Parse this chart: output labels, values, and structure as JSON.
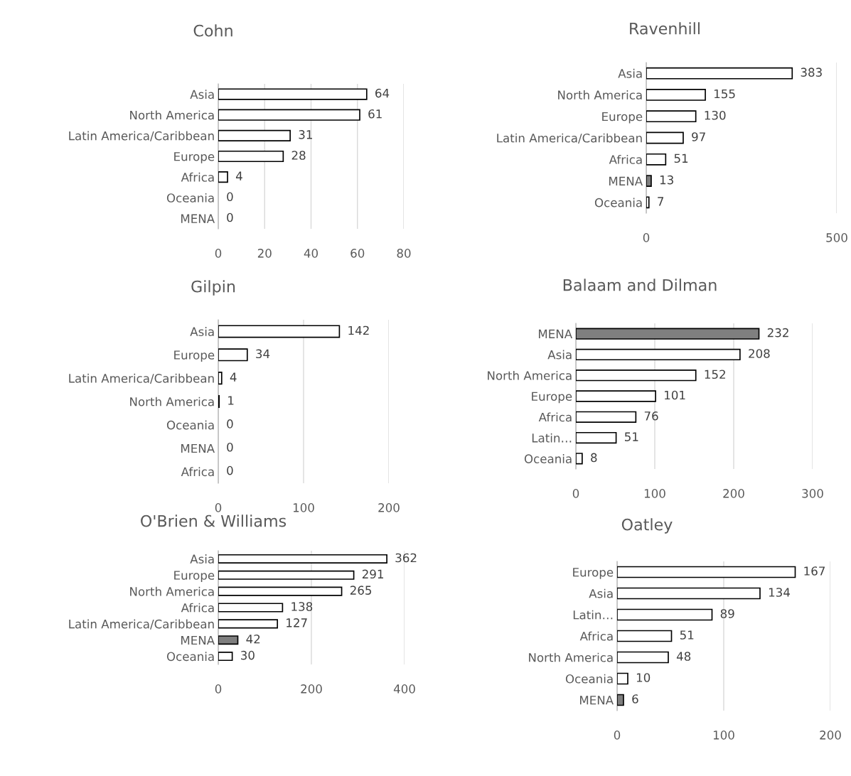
{
  "chart_data": [
    {
      "type": "bar",
      "orientation": "horizontal",
      "title": "Cohn",
      "categories": [
        "Asia",
        "North America",
        "Latin America/Caribbean",
        "Europe",
        "Africa",
        "Oceania",
        "MENA"
      ],
      "values": [
        64,
        61,
        31,
        28,
        4,
        0,
        0
      ],
      "colors": [
        "#ffffff",
        "#ffffff",
        "#ffffff",
        "#ffffff",
        "#ffffff",
        "#ffffff",
        "#7f7f7f"
      ],
      "xlim": [
        0,
        80
      ],
      "xticks": [
        0,
        20,
        40,
        60,
        80
      ],
      "grid": "x",
      "data_labels": true
    },
    {
      "type": "bar",
      "orientation": "horizontal",
      "title": "Ravenhill",
      "categories": [
        "Asia",
        "North America",
        "Europe",
        "Latin America/Caribbean",
        "Africa",
        "MENA",
        "Oceania"
      ],
      "values": [
        383,
        155,
        130,
        97,
        51,
        13,
        7
      ],
      "colors": [
        "#ffffff",
        "#ffffff",
        "#ffffff",
        "#ffffff",
        "#ffffff",
        "#7f7f7f",
        "#ffffff"
      ],
      "xlim": [
        0,
        500
      ],
      "xticks": [
        0,
        500
      ],
      "grid": "x",
      "data_labels": true
    },
    {
      "type": "bar",
      "orientation": "horizontal",
      "title": "Gilpin",
      "categories": [
        "Asia",
        "Europe",
        "Latin America/Caribbean",
        "North America",
        "Oceania",
        "MENA",
        "Africa"
      ],
      "values": [
        142,
        34,
        4,
        1,
        0,
        0,
        0
      ],
      "colors": [
        "#ffffff",
        "#ffffff",
        "#ffffff",
        "#ffffff",
        "#ffffff",
        "#7f7f7f",
        "#ffffff"
      ],
      "xlim": [
        0,
        200
      ],
      "xticks": [
        0,
        100,
        200
      ],
      "grid": "x",
      "data_labels": true
    },
    {
      "type": "bar",
      "orientation": "horizontal",
      "title": "Balaam and Dilman",
      "categories": [
        "MENA",
        "Asia",
        "North America",
        "Europe",
        "Africa",
        "Latin…",
        "Oceania"
      ],
      "values": [
        232,
        208,
        152,
        101,
        76,
        51,
        8
      ],
      "colors": [
        "#7f7f7f",
        "#ffffff",
        "#ffffff",
        "#ffffff",
        "#ffffff",
        "#ffffff",
        "#ffffff"
      ],
      "xlim": [
        0,
        300
      ],
      "xticks": [
        0,
        100,
        200,
        300
      ],
      "grid": "x",
      "data_labels": true
    },
    {
      "type": "bar",
      "orientation": "horizontal",
      "title": "O'Brien & Williams",
      "categories": [
        "Asia",
        "Europe",
        "North America",
        "Africa",
        "Latin America/Caribbean",
        "MENA",
        "Oceania"
      ],
      "values": [
        362,
        291,
        265,
        138,
        127,
        42,
        30
      ],
      "colors": [
        "#ffffff",
        "#ffffff",
        "#ffffff",
        "#ffffff",
        "#ffffff",
        "#7f7f7f",
        "#ffffff"
      ],
      "xlim": [
        0,
        400
      ],
      "xticks": [
        0,
        200,
        400
      ],
      "grid": "x",
      "data_labels": true
    },
    {
      "type": "bar",
      "orientation": "horizontal",
      "title": "Oatley",
      "categories": [
        "Europe",
        "Asia",
        "Latin…",
        "Africa",
        "North America",
        "Oceania",
        "MENA"
      ],
      "values": [
        167,
        134,
        89,
        51,
        48,
        10,
        6
      ],
      "colors": [
        "#ffffff",
        "#ffffff",
        "#ffffff",
        "#ffffff",
        "#ffffff",
        "#ffffff",
        "#7f7f7f"
      ],
      "xlim": [
        0,
        200
      ],
      "xticks": [
        0,
        100,
        200
      ],
      "grid": "x",
      "data_labels": true
    }
  ]
}
